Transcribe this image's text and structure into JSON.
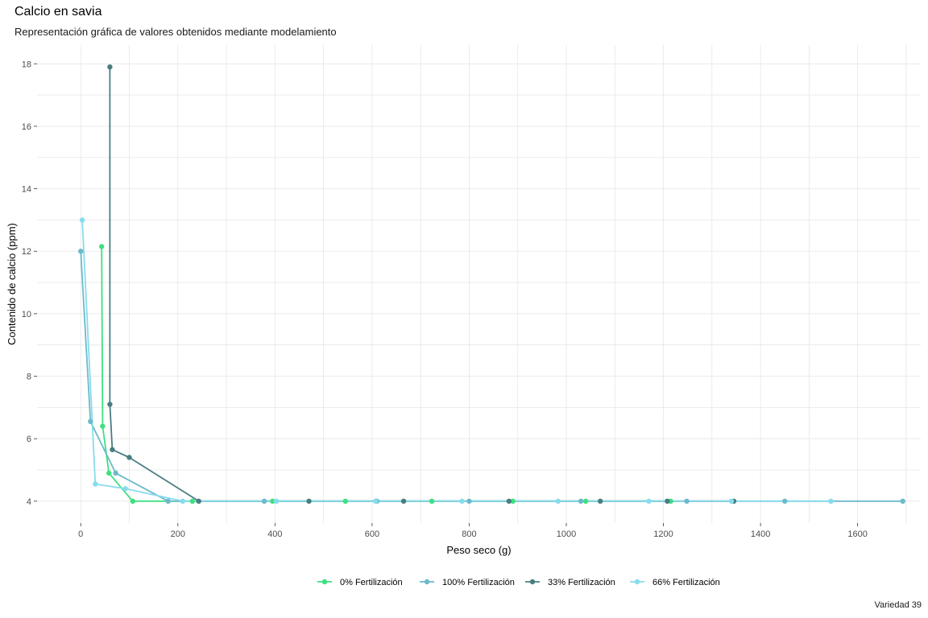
{
  "chart_data": {
    "type": "line",
    "title": "Calcio en savia",
    "subtitle": "Representación gráfica de valores obtenidos mediante modelamiento",
    "caption": "Variedad 39",
    "xlabel": "Peso seco (g)",
    "ylabel": "Contenido de calcio (ppm)",
    "xlim": [
      -90,
      1730
    ],
    "ylim": [
      3.3,
      18.6
    ],
    "xticks": [
      0,
      200,
      400,
      600,
      800,
      1000,
      1200,
      1400,
      1600
    ],
    "yticks": [
      4,
      6,
      8,
      10,
      12,
      14,
      16,
      18
    ],
    "grid": true,
    "legend_position": "bottom",
    "series": [
      {
        "name": "0% Fertilización",
        "color": "#3ee07f",
        "points": [
          [
            43,
            12.15
          ],
          [
            45,
            6.4
          ],
          [
            58,
            4.9
          ],
          [
            107,
            4.0
          ],
          [
            230,
            4.0
          ],
          [
            395,
            4.0
          ],
          [
            545,
            4.0
          ],
          [
            723,
            4.0
          ],
          [
            890,
            4.0
          ],
          [
            1040,
            4.0
          ],
          [
            1215,
            4.0
          ]
        ]
      },
      {
        "name": "100% Fertilización",
        "color": "#6cbacb",
        "points": [
          [
            0,
            12.0
          ],
          [
            20,
            6.55
          ],
          [
            72,
            4.9
          ],
          [
            180,
            4.0
          ],
          [
            378,
            4.0
          ],
          [
            610,
            4.0
          ],
          [
            800,
            4.0
          ],
          [
            1030,
            4.0
          ],
          [
            1248,
            4.0
          ],
          [
            1450,
            4.0
          ],
          [
            1693,
            4.0
          ]
        ]
      },
      {
        "name": "33% Fertilización",
        "color": "#4a7d82",
        "points": [
          [
            60,
            17.9
          ],
          [
            60,
            7.1
          ],
          [
            65,
            5.65
          ],
          [
            100,
            5.4
          ],
          [
            243,
            4.0
          ],
          [
            470,
            4.0
          ],
          [
            665,
            4.0
          ],
          [
            882,
            4.0
          ],
          [
            1070,
            4.0
          ],
          [
            1208,
            4.0
          ],
          [
            1345,
            4.0
          ]
        ]
      },
      {
        "name": "66% Fertilización",
        "color": "#87dcec",
        "points": [
          [
            3,
            13.0
          ],
          [
            30,
            4.55
          ],
          [
            92,
            4.4
          ],
          [
            210,
            4.0
          ],
          [
            403,
            4.0
          ],
          [
            607,
            4.0
          ],
          [
            785,
            4.0
          ],
          [
            983,
            4.0
          ],
          [
            1170,
            4.0
          ],
          [
            1340,
            4.0
          ],
          [
            1545,
            4.0
          ]
        ]
      }
    ]
  }
}
